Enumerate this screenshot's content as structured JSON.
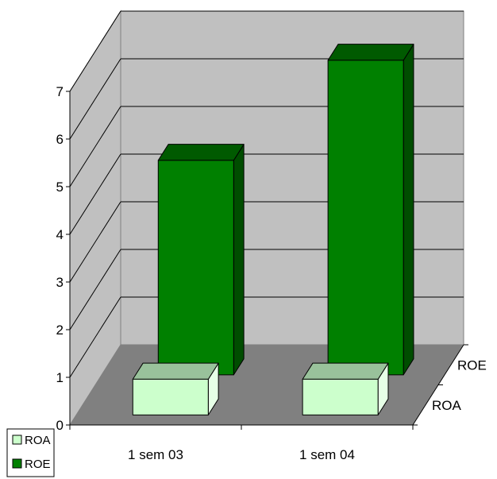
{
  "chart_data": {
    "type": "bar",
    "style": "3d-clustered-depth",
    "categories": [
      "1 sem 03",
      "1 sem 04"
    ],
    "depth_labels": [
      "ROA",
      "ROE"
    ],
    "series": [
      {
        "name": "ROA",
        "values": [
          0.75,
          0.75
        ],
        "color": "#ccffcc",
        "top_color": "#99c29b",
        "side_color": "#e6ffe6"
      },
      {
        "name": "ROE",
        "values": [
          4.5,
          6.6
        ],
        "color": "#008000",
        "top_color": "#005a00",
        "side_color": "#004d00"
      }
    ],
    "ylim": [
      0,
      7
    ],
    "yticks": [
      "0",
      "1",
      "2",
      "3",
      "4",
      "5",
      "6",
      "7"
    ],
    "grid": true,
    "legend": "bottom-left",
    "colors": {
      "wall": "#c0c0c0",
      "floor": "#808080",
      "grid": "#000000"
    }
  }
}
